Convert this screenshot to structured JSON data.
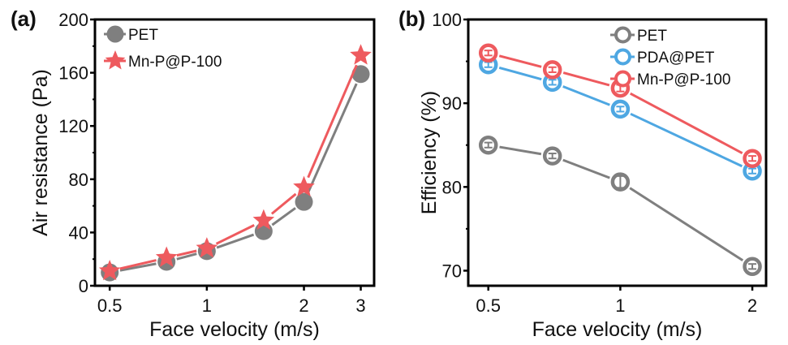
{
  "chart_data": [
    {
      "panel": "(a)",
      "type": "line",
      "title": "",
      "xlabel": "Face velocity (m/s)",
      "ylabel": "Air resistance (Pa)",
      "xscale": "log",
      "xlim": [
        0.45,
        3.3
      ],
      "ylim": [
        0,
        200
      ],
      "xticks": [
        0.5,
        1,
        2,
        3
      ],
      "xtick_labels": [
        "0.5",
        "1",
        "2",
        "3"
      ],
      "yticks": [
        0,
        40,
        80,
        120,
        160,
        200
      ],
      "ytick_labels": [
        "0",
        "40",
        "80",
        "120",
        "160",
        "200"
      ],
      "y_minor_ticks": [
        20,
        60,
        100,
        140,
        180
      ],
      "grid": false,
      "legend_position": "top-left",
      "x": [
        0.5,
        0.75,
        1,
        1.5,
        2,
        3
      ],
      "series": [
        {
          "name": "PET",
          "marker": "filled-circle",
          "color": "#7f7f7f",
          "values": [
            10,
            18,
            26,
            41,
            63,
            159
          ]
        },
        {
          "name": "Mn-P@P-100",
          "marker": "filled-star",
          "color": "#ee5a5e",
          "values": [
            11,
            21,
            28,
            49,
            74,
            173
          ]
        }
      ]
    },
    {
      "panel": "(b)",
      "type": "line",
      "title": "",
      "xlabel": "Face velocity (m/s)",
      "ylabel": "Efficiency (%)",
      "xscale": "log",
      "xlim": [
        0.45,
        2.15
      ],
      "ylim": [
        68.2,
        100
      ],
      "xticks": [
        0.5,
        1,
        2
      ],
      "xtick_labels": [
        "0.5",
        "1",
        "2"
      ],
      "yticks": [
        70,
        80,
        90,
        100
      ],
      "ytick_labels": [
        "70",
        "80",
        "90",
        "100"
      ],
      "y_minor_ticks": [
        75,
        85,
        95
      ],
      "grid": false,
      "legend_position": "top-right",
      "x": [
        0.5,
        0.7,
        1,
        2
      ],
      "series": [
        {
          "name": "PET",
          "marker": "open-circle",
          "color": "#7f7f7f",
          "values": [
            85.0,
            83.7,
            80.6,
            70.5
          ],
          "error": [
            0.3,
            0.3,
            0.7,
            0.3
          ]
        },
        {
          "name": "PDA@PET",
          "marker": "open-circle",
          "color": "#4ea7e2",
          "values": [
            94.6,
            92.5,
            89.3,
            81.9
          ],
          "error": [
            0.3,
            0.3,
            0.3,
            0.3
          ]
        },
        {
          "name": "Mn-P@P-100",
          "marker": "open-circle",
          "color": "#ee5a5e",
          "values": [
            96.0,
            94.0,
            91.8,
            83.4
          ],
          "error": [
            0.3,
            0.3,
            0.4,
            0.3
          ]
        }
      ]
    }
  ]
}
